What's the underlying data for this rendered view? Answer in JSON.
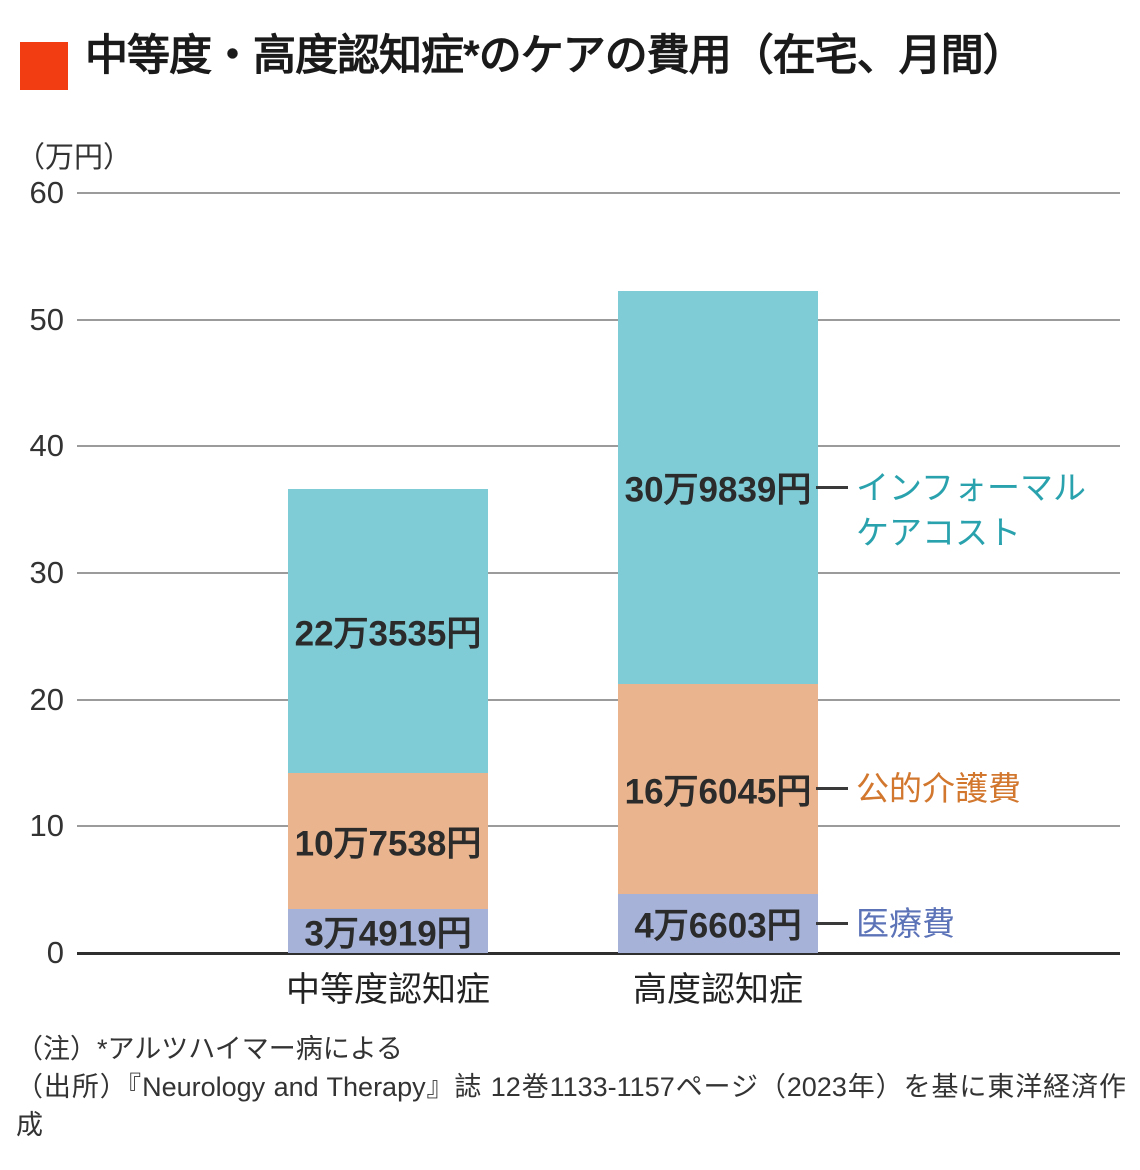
{
  "header": {
    "title": "中等度・高度認知症*のケアの費用（在宅、月間）",
    "accent_color": "#f23d12"
  },
  "chart_data": {
    "type": "bar",
    "subtype": "stacked-vertical",
    "unit_label": "（万円）",
    "ylim": [
      0,
      60
    ],
    "yticks": [
      0,
      10,
      20,
      30,
      40,
      50,
      60
    ],
    "grid": "horizontal-lines",
    "categories": [
      "中等度認知症",
      "高度認知症"
    ],
    "series": [
      {
        "key": "medical",
        "name": "医療費",
        "legend_lines": [
          "医療費"
        ],
        "values_man_yen": [
          3.4919,
          4.6603
        ],
        "value_labels": [
          "3万4919円",
          "4万6603円"
        ],
        "fill": "#a6b2d8",
        "legend_color": "#5c73b8"
      },
      {
        "key": "public-care",
        "name": "公的介護費",
        "legend_lines": [
          "公的介護費"
        ],
        "values_man_yen": [
          10.7538,
          16.6045
        ],
        "value_labels": [
          "10万7538円",
          "16万6045円"
        ],
        "fill": "#e9b48e",
        "legend_color": "#d2772e"
      },
      {
        "key": "informal",
        "name": "インフォーマルケアコスト",
        "legend_lines": [
          "インフォーマル",
          "ケアコスト"
        ],
        "values_man_yen": [
          22.3535,
          30.9839
        ],
        "value_labels": [
          "22万3535円",
          "30万9839円"
        ],
        "fill": "#7fccd6",
        "legend_color": "#2aa2ae"
      }
    ],
    "totals_man_yen": [
      36.5992,
      52.2487
    ],
    "legend_position": "right-of-second-bar"
  },
  "footer": {
    "note": "（注）*アルツハイマー病による",
    "source": "（出所）『Neurology and Therapy』誌 12巻1133-1157ページ（2023年）を基に東洋経済作成"
  }
}
